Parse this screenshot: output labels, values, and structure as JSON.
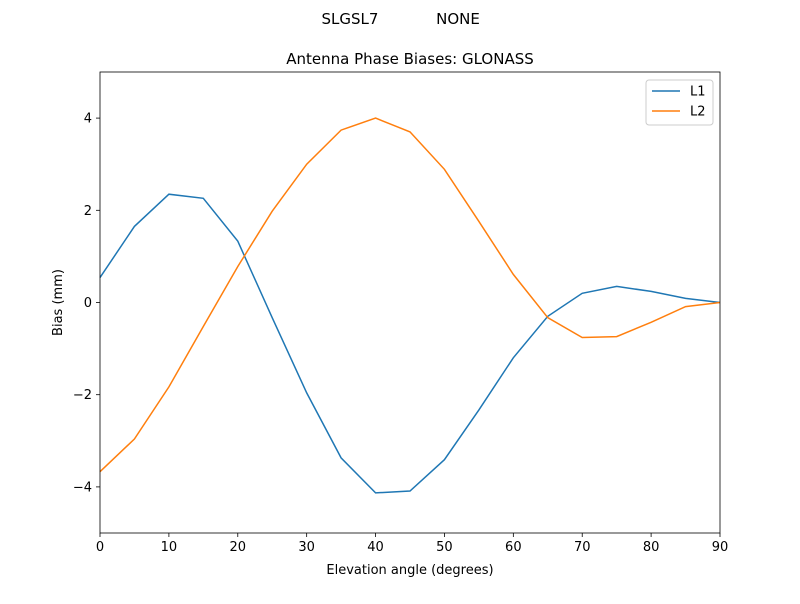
{
  "chart_data": {
    "type": "line",
    "suptitle": "SLGSL7          NONE",
    "suptitle_parts": [
      "SLGSL7",
      "NONE"
    ],
    "title": "Antenna Phase Biases: GLONASS",
    "xlabel": "Elevation angle (degrees)",
    "ylabel": "Bias (mm)",
    "xlim": [
      0,
      90
    ],
    "ylim": [
      -5,
      5
    ],
    "xticks": [
      0,
      10,
      20,
      30,
      40,
      50,
      60,
      70,
      80,
      90
    ],
    "yticks": [
      -4,
      -2,
      0,
      2,
      4
    ],
    "ytick_labels": [
      "−4",
      "−2",
      "0",
      "2",
      "4"
    ],
    "grid": false,
    "legend_placement": "top-right",
    "x": [
      0,
      5,
      10,
      15,
      20,
      25,
      30,
      35,
      40,
      45,
      50,
      55,
      60,
      65,
      70,
      75,
      80,
      85,
      90
    ],
    "series": [
      {
        "name": "L1",
        "color": "#1f77b4",
        "values": [
          0.54,
          1.65,
          2.35,
          2.26,
          1.33,
          -0.33,
          -1.96,
          -3.37,
          -4.13,
          -4.09,
          -3.41,
          -2.33,
          -1.2,
          -0.3,
          0.2,
          0.35,
          0.24,
          0.09,
          0.0
        ]
      },
      {
        "name": "L2",
        "color": "#ff7f0e",
        "values": [
          -3.67,
          -2.96,
          -1.83,
          -0.52,
          0.78,
          1.98,
          3.0,
          3.74,
          4.0,
          3.7,
          2.89,
          1.76,
          0.61,
          -0.33,
          -0.76,
          -0.74,
          -0.43,
          -0.09,
          0.0
        ]
      }
    ]
  }
}
